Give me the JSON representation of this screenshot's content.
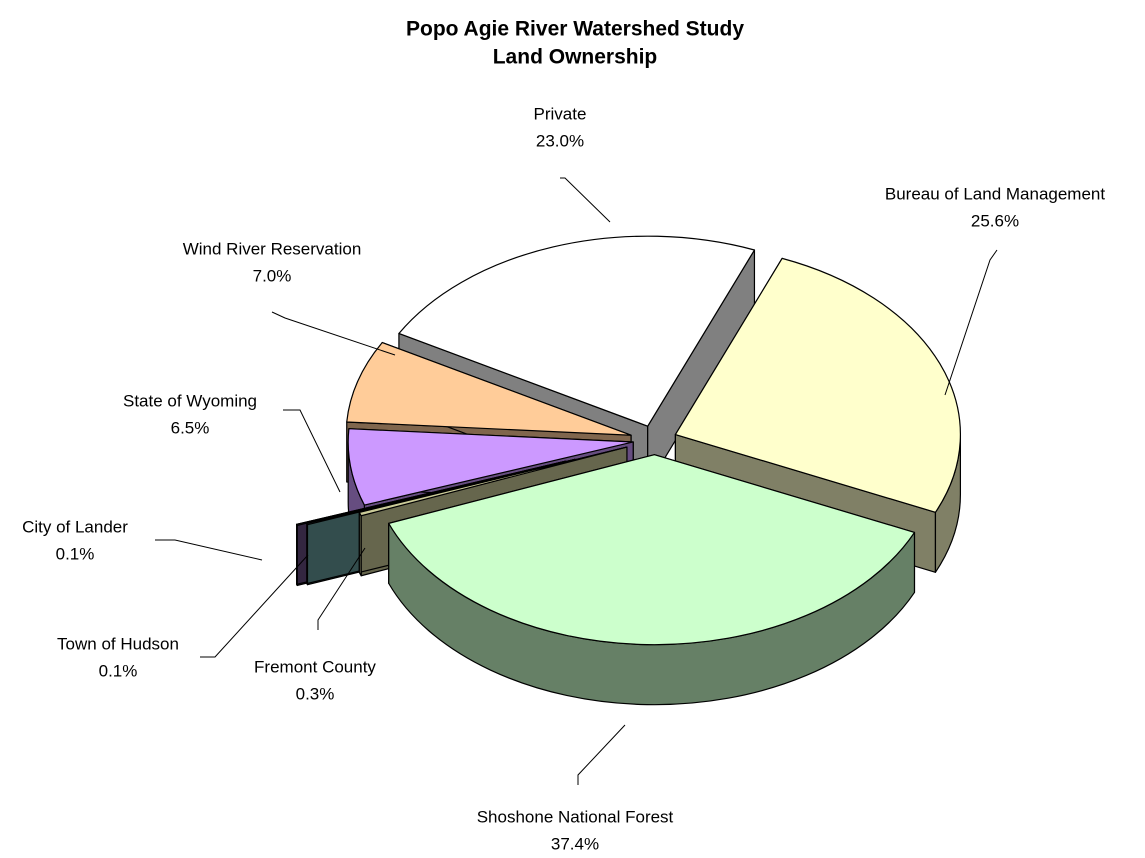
{
  "chart_data": {
    "type": "pie",
    "title": "Popo Agie River Watershed Study",
    "subtitle": "Land Ownership",
    "categories": [
      "Bureau of Land Management",
      "Shoshone National Forest",
      "Fremont County",
      "Town of Hudson",
      "City of Lander",
      "State of Wyoming",
      "Wind River Reservation",
      "Private"
    ],
    "values": [
      25.6,
      37.4,
      0.3,
      0.1,
      0.1,
      6.5,
      7.0,
      23.0
    ],
    "value_labels": [
      "25.6%",
      "37.4%",
      "0.3%",
      "0.1%",
      "0.1%",
      "6.5%",
      "7.0%",
      "23.0%"
    ],
    "colors": [
      "#ffffcc",
      "#ccffcc",
      "#cccc99",
      "#669999",
      "#664c80",
      "#cc99ff",
      "#ffcc99",
      "#ffffff"
    ]
  }
}
